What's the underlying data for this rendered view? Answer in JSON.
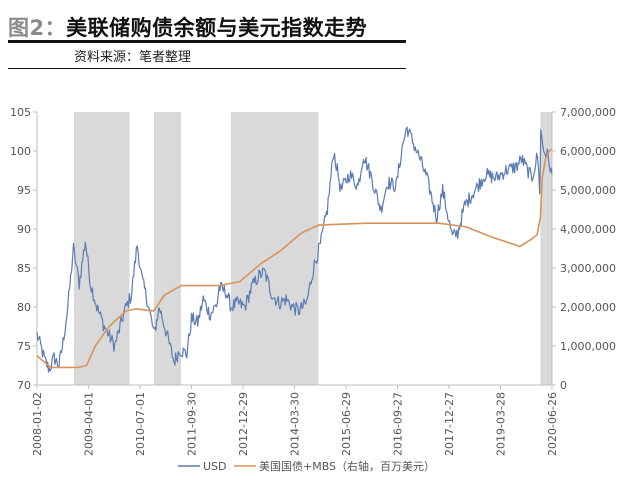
{
  "header": {
    "figure_label": "图2：",
    "title": "美联储购债余额与美元指数走势",
    "source": "资料来源：笔者整理"
  },
  "colors": {
    "usd": "#5b7bb3",
    "mbs": "#d9925a",
    "shade": "#d9d9d9",
    "axis": "#bfbfbf"
  },
  "chart_data": {
    "type": "line",
    "x_tick_labels": [
      "2008-01-02",
      "2009-04-01",
      "2010-07-01",
      "2011-09-30",
      "2012-12-29",
      "2014-03-30",
      "2015-06-29",
      "2016-09-27",
      "2017-12-27",
      "2019-03-28",
      "2020-06-26"
    ],
    "x_range": [
      "2008-01-02",
      "2020-06-26"
    ],
    "y_left": {
      "min": 70,
      "max": 105,
      "ticks": [
        "70",
        "75",
        "80",
        "85",
        "90",
        "95",
        "100",
        "105"
      ]
    },
    "y_right": {
      "min": 0,
      "max": 7000000,
      "ticks": [
        "0",
        "1,000,000",
        "2,000,000",
        "3,000,000",
        "4,000,000",
        "5,000,000",
        "6,000,000",
        "7,000,000"
      ]
    },
    "shaded_periods": [
      [
        "2008-11-25",
        "2010-03-31"
      ],
      [
        "2010-11-03",
        "2011-06-30"
      ],
      [
        "2012-09-13",
        "2014-10-29"
      ],
      [
        "2020-03-15",
        "2020-06-26"
      ]
    ],
    "series": [
      {
        "name": "USD",
        "axis": "left",
        "x": [
          "2008-01-02",
          "2008-03-15",
          "2008-04-20",
          "2008-06-01",
          "2008-07-15",
          "2008-08-20",
          "2008-10-01",
          "2008-11-20",
          "2009-01-10",
          "2009-03-05",
          "2009-04-20",
          "2009-06-15",
          "2009-08-20",
          "2009-11-20",
          "2010-02-15",
          "2010-04-15",
          "2010-06-07",
          "2010-07-20",
          "2010-09-10",
          "2010-11-04",
          "2010-12-20",
          "2011-02-15",
          "2011-04-29",
          "2011-06-20",
          "2011-08-20",
          "2011-10-01",
          "2011-11-25",
          "2012-01-13",
          "2012-03-15",
          "2012-05-15",
          "2012-06-01",
          "2012-08-01",
          "2012-09-15",
          "2012-11-15",
          "2013-01-15",
          "2013-03-15",
          "2013-05-20",
          "2013-07-09",
          "2013-09-15",
          "2013-11-15",
          "2014-01-15",
          "2014-03-15",
          "2014-05-06",
          "2014-07-15",
          "2014-09-15",
          "2014-11-15",
          "2015-01-15",
          "2015-03-13",
          "2015-05-15",
          "2015-08-01",
          "2015-10-15",
          "2015-12-01",
          "2016-02-01",
          "2016-05-03",
          "2016-07-01",
          "2016-09-15",
          "2016-11-15",
          "2016-12-20",
          "2017-02-15",
          "2017-04-15",
          "2017-06-15",
          "2017-09-08",
          "2017-11-01",
          "2018-01-25",
          "2018-03-15",
          "2018-05-15",
          "2018-08-15",
          "2018-11-15",
          "2019-02-15",
          "2019-05-15",
          "2019-08-15",
          "2019-10-01",
          "2019-12-31",
          "2020-02-19",
          "2020-03-09",
          "2020-03-19",
          "2020-04-15",
          "2020-05-15",
          "2020-06-26"
        ],
        "values": [
          76.5,
          73.0,
          72.0,
          73.5,
          72.5,
          75.5,
          80.0,
          87.5,
          83.0,
          88.5,
          83.0,
          80.0,
          77.5,
          75.0,
          79.5,
          81.5,
          88.0,
          83.5,
          80.5,
          76.5,
          80.0,
          77.0,
          73.0,
          74.5,
          74.0,
          78.5,
          78.0,
          81.0,
          79.0,
          80.5,
          82.5,
          82.0,
          80.0,
          80.5,
          80.0,
          82.5,
          84.0,
          84.5,
          81.5,
          80.5,
          81.0,
          80.0,
          79.5,
          80.5,
          85.0,
          88.0,
          92.5,
          100.0,
          95.0,
          97.0,
          95.5,
          99.5,
          97.0,
          92.5,
          96.0,
          95.5,
          101.0,
          103.0,
          101.0,
          99.0,
          96.5,
          91.5,
          95.0,
          89.0,
          89.5,
          93.0,
          95.0,
          97.0,
          96.5,
          97.5,
          98.0,
          99.0,
          96.5,
          99.5,
          95.0,
          102.5,
          100.0,
          99.5,
          97.0
        ]
      },
      {
        "name": "美国国债+MBS（右轴，百万美元）",
        "axis": "right",
        "x": [
          "2008-01-02",
          "2008-05-01",
          "2009-01-01",
          "2009-03-15",
          "2009-06-01",
          "2009-10-01",
          "2010-03-01",
          "2010-06-01",
          "2010-11-01",
          "2011-02-01",
          "2011-07-01",
          "2012-06-01",
          "2012-12-01",
          "2013-06-01",
          "2013-12-01",
          "2014-06-01",
          "2014-10-29",
          "2016-01-01",
          "2017-10-01",
          "2018-06-01",
          "2019-01-01",
          "2019-08-01",
          "2019-09-15",
          "2020-01-01",
          "2020-02-15",
          "2020-03-15",
          "2020-03-31",
          "2020-04-30",
          "2020-05-31",
          "2020-06-26"
        ],
        "values": [
          750000,
          450000,
          450000,
          500000,
          1000000,
          1500000,
          1900000,
          1950000,
          1900000,
          2300000,
          2550000,
          2550000,
          2650000,
          3100000,
          3450000,
          3900000,
          4100000,
          4150000,
          4150000,
          4050000,
          3800000,
          3600000,
          3550000,
          3750000,
          3850000,
          4300000,
          5300000,
          5800000,
          6000000,
          6050000
        ]
      }
    ]
  },
  "legend": {
    "usd_label": "USD",
    "mbs_label": "美国国债+MBS（右轴，百万美元）"
  }
}
